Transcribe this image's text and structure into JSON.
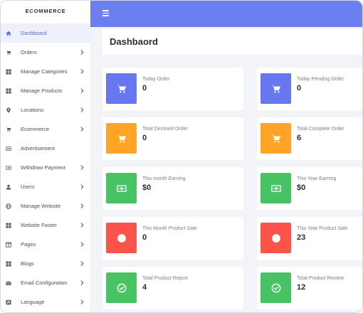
{
  "sidebar": {
    "brand": "ECOMMERCE",
    "items": [
      {
        "label": "Dashboard",
        "icon": "home-icon",
        "has_chevron": false,
        "active": true
      },
      {
        "label": "Orders",
        "icon": "cart-icon",
        "has_chevron": true,
        "active": false
      },
      {
        "label": "Manage Categories",
        "icon": "grid-icon",
        "has_chevron": true,
        "active": false
      },
      {
        "label": "Manage Products",
        "icon": "grid-icon",
        "has_chevron": true,
        "active": false
      },
      {
        "label": "Locations",
        "icon": "map-pin-icon",
        "has_chevron": true,
        "active": false
      },
      {
        "label": "Ecommerce",
        "icon": "cart-icon",
        "has_chevron": true,
        "active": false
      },
      {
        "label": "Advertisement",
        "icon": "ad-icon",
        "has_chevron": false,
        "active": false
      },
      {
        "label": "Withdraw Payment",
        "icon": "money-icon",
        "has_chevron": true,
        "active": false
      },
      {
        "label": "Users",
        "icon": "user-icon",
        "has_chevron": true,
        "active": false
      },
      {
        "label": "Manage Website",
        "icon": "globe-icon",
        "has_chevron": true,
        "active": false
      },
      {
        "label": "Website Footer",
        "icon": "grid-icon",
        "has_chevron": true,
        "active": false
      },
      {
        "label": "Pages",
        "icon": "columns-icon",
        "has_chevron": true,
        "active": false
      },
      {
        "label": "Blogs",
        "icon": "grid-icon",
        "has_chevron": true,
        "active": false
      },
      {
        "label": "Email Configuration",
        "icon": "envelope-icon",
        "has_chevron": true,
        "active": false
      },
      {
        "label": "Language",
        "icon": "language-icon",
        "has_chevron": true,
        "active": false
      }
    ]
  },
  "header": {
    "menu_icon": "hamburger-icon",
    "page_title": "Dashbaord"
  },
  "colors": {
    "topbar": "#6b7ff0",
    "active_text": "#5867dd",
    "indigo": "#6777ef",
    "orange": "#ffa426",
    "green": "#47c363",
    "red": "#fc544b"
  },
  "stats": [
    {
      "label": "Today Order",
      "value": "0",
      "icon": "cart-icon",
      "color": "#6777ef"
    },
    {
      "label": "Today Pending Order",
      "value": "0",
      "icon": "cart-icon",
      "color": "#6777ef"
    },
    {
      "label": "Total Declined Order",
      "value": "0",
      "icon": "cart-icon",
      "color": "#ffa426"
    },
    {
      "label": "Total Complete Order",
      "value": "6",
      "icon": "cart-icon",
      "color": "#ffa426"
    },
    {
      "label": "This month Earning",
      "value": "$0",
      "icon": "money-icon",
      "color": "#47c363"
    },
    {
      "label": "This Year Earning",
      "value": "$0",
      "icon": "money-icon",
      "color": "#47c363"
    },
    {
      "label": "This Month Product Sale",
      "value": "0",
      "icon": "circle-icon",
      "color": "#fc544b"
    },
    {
      "label": "This Year Product Sale",
      "value": "23",
      "icon": "circle-icon",
      "color": "#fc544b"
    },
    {
      "label": "Total Product Report",
      "value": "4",
      "icon": "check-circle-icon",
      "color": "#47c363"
    },
    {
      "label": "Total Product Review",
      "value": "12",
      "icon": "check-circle-icon",
      "color": "#47c363"
    }
  ]
}
